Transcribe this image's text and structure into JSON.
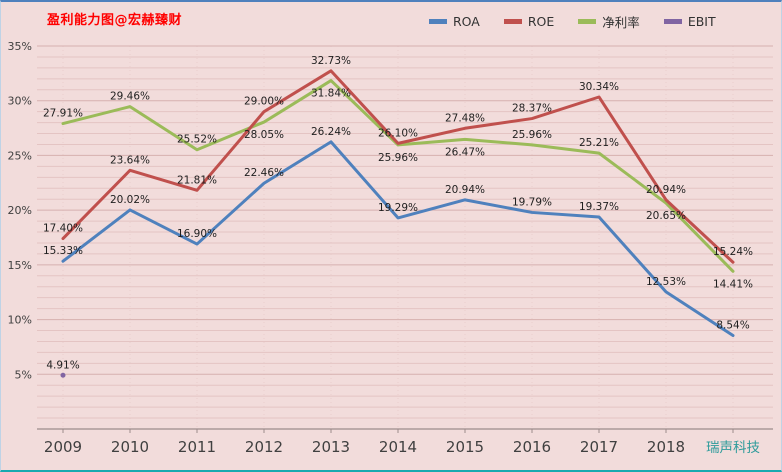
{
  "colors": {
    "background": "#F2DCDB",
    "title": "#FF0000",
    "tick_text": "#404040",
    "company_label": "#2E9B9B",
    "grid_minor": "#E4C4C3",
    "grid_major": "#D6B0AF",
    "axis": "#9C8B8B",
    "data_label_text": "#1F1F1F"
  },
  "chart_data": {
    "type": "line",
    "title": "盈利能力图@宏赫臻财",
    "legend_position": "top",
    "grid": "horizontal minor 1%, major 5%",
    "ylim": [
      0,
      35
    ],
    "y_ticks": [
      {
        "label": "35%",
        "value": 35
      },
      {
        "label": "30%",
        "value": 30
      },
      {
        "label": "25%",
        "value": 25
      },
      {
        "label": "20%",
        "value": 20
      },
      {
        "label": "15%",
        "value": 15
      },
      {
        "label": "10%",
        "value": 10
      },
      {
        "label": "5%",
        "value": 5
      }
    ],
    "categories": [
      "2009",
      "2010",
      "2011",
      "2012",
      "2013",
      "2014",
      "2015",
      "2016",
      "2017",
      "2018",
      "瑞声科技"
    ],
    "series": [
      {
        "name": "ROA",
        "color": "#4F81BD",
        "values": [
          15.33,
          20.02,
          16.9,
          22.46,
          26.24,
          19.29,
          20.94,
          19.79,
          19.37,
          12.53,
          8.54
        ]
      },
      {
        "name": "ROE",
        "color": "#C0504D",
        "values": [
          17.4,
          23.64,
          21.81,
          29.0,
          32.73,
          26.1,
          27.48,
          28.37,
          30.34,
          20.94,
          15.24
        ]
      },
      {
        "name": "净利率",
        "color": "#9BBB59",
        "values": [
          27.91,
          29.46,
          25.52,
          28.05,
          31.84,
          25.96,
          26.47,
          25.96,
          25.21,
          20.65,
          14.41
        ]
      },
      {
        "name": "EBIT",
        "color": "#8064A2",
        "values": [
          4.91,
          null,
          null,
          null,
          null,
          null,
          null,
          null,
          null,
          null,
          null
        ]
      }
    ]
  }
}
